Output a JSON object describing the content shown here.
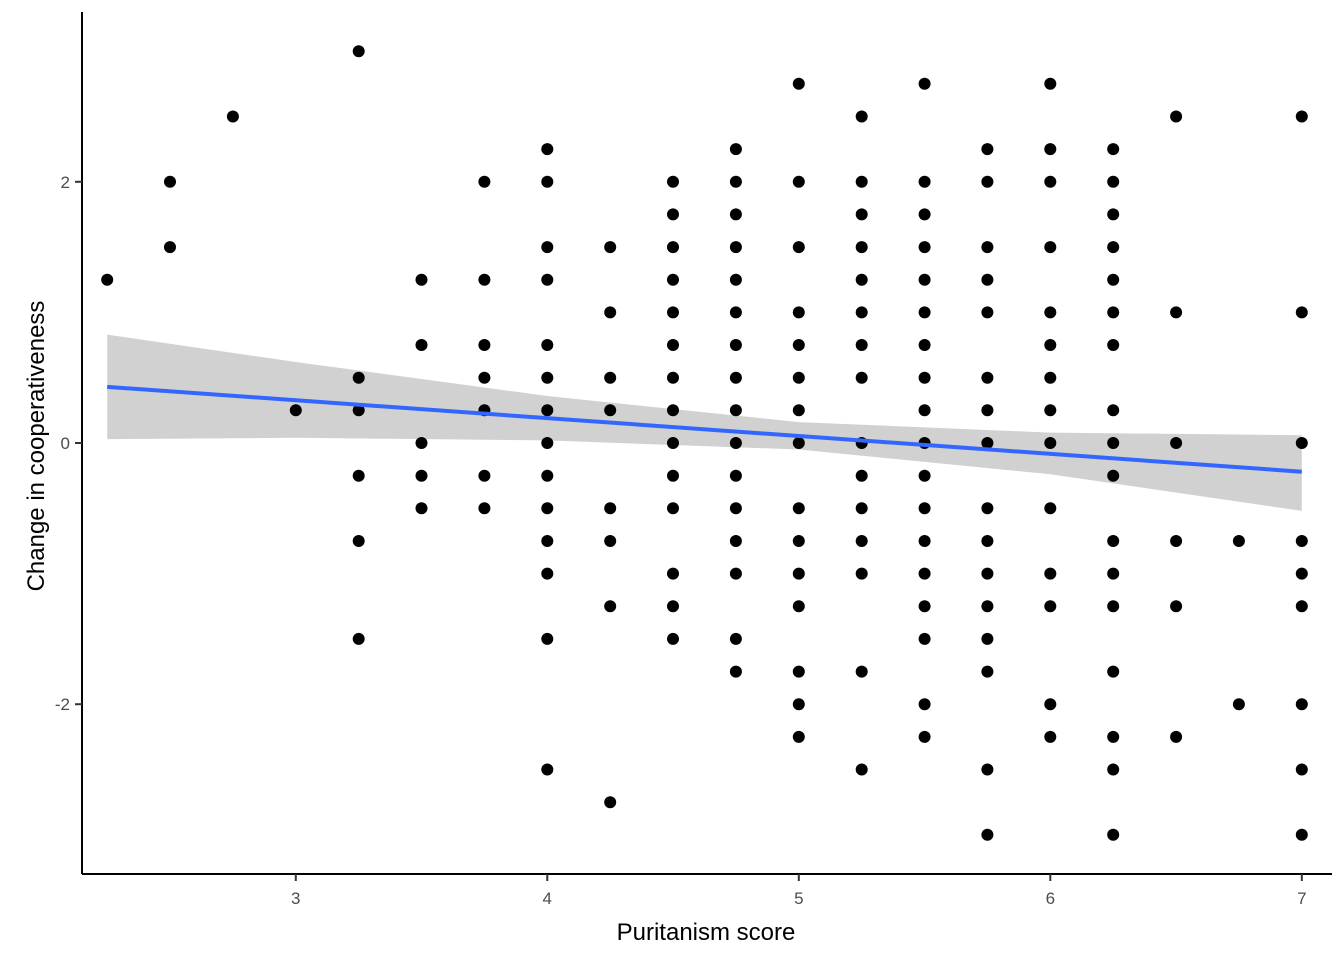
{
  "chart_data": {
    "type": "scatter",
    "title": "",
    "xlabel": "Puritanism score",
    "ylabel": "Change in cooperativeness",
    "xlim": [
      2.15,
      7.12
    ],
    "ylim": [
      -3.3,
      3.3
    ],
    "x_ticks": [
      3,
      4,
      5,
      6,
      7
    ],
    "y_ticks": [
      -2,
      0,
      2
    ],
    "x_tick_labels": [
      "3",
      "4",
      "5",
      "6",
      "7"
    ],
    "y_tick_labels": [
      "-2",
      "0",
      "2"
    ],
    "grid": false,
    "legend": "none",
    "colors": {
      "points": "#000000",
      "fit_line": "#3366FF",
      "ribbon": "#999999",
      "axis": "#000000"
    },
    "points": [
      [
        2.25,
        1.25
      ],
      [
        2.5,
        2
      ],
      [
        2.5,
        1.5
      ],
      [
        2.75,
        2.5
      ],
      [
        3,
        0.25
      ],
      [
        3.25,
        3
      ],
      [
        3.25,
        0.5
      ],
      [
        3.25,
        0.25
      ],
      [
        3.25,
        -0.25
      ],
      [
        3.25,
        -0.75
      ],
      [
        3.25,
        -1.5
      ],
      [
        3.5,
        1.25
      ],
      [
        3.5,
        0.75
      ],
      [
        3.5,
        0
      ],
      [
        3.5,
        -0.25
      ],
      [
        3.5,
        -0.5
      ],
      [
        3.75,
        2
      ],
      [
        3.75,
        1.25
      ],
      [
        3.75,
        0.75
      ],
      [
        3.75,
        0.5
      ],
      [
        3.75,
        0.25
      ],
      [
        3.75,
        -0.25
      ],
      [
        3.75,
        -0.5
      ],
      [
        4,
        2.25
      ],
      [
        4,
        2
      ],
      [
        4,
        1.5
      ],
      [
        4,
        1.25
      ],
      [
        4,
        0.75
      ],
      [
        4,
        0.5
      ],
      [
        4,
        0.25
      ],
      [
        4,
        0
      ],
      [
        4,
        -0.25
      ],
      [
        4,
        -0.5
      ],
      [
        4,
        -0.75
      ],
      [
        4,
        -1
      ],
      [
        4,
        -1.5
      ],
      [
        4,
        -2.5
      ],
      [
        4.25,
        1.5
      ],
      [
        4.25,
        1
      ],
      [
        4.25,
        0.5
      ],
      [
        4.25,
        0.25
      ],
      [
        4.25,
        -0.5
      ],
      [
        4.25,
        -0.75
      ],
      [
        4.25,
        -1.25
      ],
      [
        4.25,
        -2.75
      ],
      [
        4.5,
        2
      ],
      [
        4.5,
        1.75
      ],
      [
        4.5,
        1.5
      ],
      [
        4.5,
        1.25
      ],
      [
        4.5,
        1
      ],
      [
        4.5,
        0.75
      ],
      [
        4.5,
        0.5
      ],
      [
        4.5,
        0.25
      ],
      [
        4.5,
        0
      ],
      [
        4.5,
        -0.25
      ],
      [
        4.5,
        -0.5
      ],
      [
        4.5,
        -1
      ],
      [
        4.5,
        -1.25
      ],
      [
        4.5,
        -1.5
      ],
      [
        4.75,
        2.25
      ],
      [
        4.75,
        2
      ],
      [
        4.75,
        1.75
      ],
      [
        4.75,
        1.5
      ],
      [
        4.75,
        1.25
      ],
      [
        4.75,
        1
      ],
      [
        4.75,
        0.75
      ],
      [
        4.75,
        0.5
      ],
      [
        4.75,
        0.25
      ],
      [
        4.75,
        0
      ],
      [
        4.75,
        -0.25
      ],
      [
        4.75,
        -0.5
      ],
      [
        4.75,
        -0.75
      ],
      [
        4.75,
        -1
      ],
      [
        4.75,
        -1.5
      ],
      [
        4.75,
        -1.75
      ],
      [
        5,
        2.75
      ],
      [
        5,
        2
      ],
      [
        5,
        1.5
      ],
      [
        5,
        1
      ],
      [
        5,
        0.75
      ],
      [
        5,
        0.5
      ],
      [
        5,
        0.25
      ],
      [
        5,
        0
      ],
      [
        5,
        -0.5
      ],
      [
        5,
        -0.75
      ],
      [
        5,
        -1
      ],
      [
        5,
        -1.25
      ],
      [
        5,
        -1.75
      ],
      [
        5,
        -2
      ],
      [
        5,
        -2.25
      ],
      [
        5.25,
        2.5
      ],
      [
        5.25,
        2
      ],
      [
        5.25,
        1.75
      ],
      [
        5.25,
        1.5
      ],
      [
        5.25,
        1.25
      ],
      [
        5.25,
        1
      ],
      [
        5.25,
        0.75
      ],
      [
        5.25,
        0.5
      ],
      [
        5.25,
        0
      ],
      [
        5.25,
        -0.25
      ],
      [
        5.25,
        -0.5
      ],
      [
        5.25,
        -0.75
      ],
      [
        5.25,
        -1
      ],
      [
        5.25,
        -1.75
      ],
      [
        5.25,
        -2.5
      ],
      [
        5.5,
        2.75
      ],
      [
        5.5,
        2
      ],
      [
        5.5,
        1.75
      ],
      [
        5.5,
        1.5
      ],
      [
        5.5,
        1.25
      ],
      [
        5.5,
        1
      ],
      [
        5.5,
        0.75
      ],
      [
        5.5,
        0.5
      ],
      [
        5.5,
        0.25
      ],
      [
        5.5,
        0
      ],
      [
        5.5,
        -0.25
      ],
      [
        5.5,
        -0.5
      ],
      [
        5.5,
        -0.75
      ],
      [
        5.5,
        -1
      ],
      [
        5.5,
        -1.25
      ],
      [
        5.5,
        -1.5
      ],
      [
        5.5,
        -2
      ],
      [
        5.5,
        -2.25
      ],
      [
        5.75,
        2.25
      ],
      [
        5.75,
        2
      ],
      [
        5.75,
        1.5
      ],
      [
        5.75,
        1.25
      ],
      [
        5.75,
        1
      ],
      [
        5.75,
        0.5
      ],
      [
        5.75,
        0.25
      ],
      [
        5.75,
        0
      ],
      [
        5.75,
        -0.5
      ],
      [
        5.75,
        -0.75
      ],
      [
        5.75,
        -1
      ],
      [
        5.75,
        -1.25
      ],
      [
        5.75,
        -1.5
      ],
      [
        5.75,
        -1.75
      ],
      [
        5.75,
        -2.5
      ],
      [
        5.75,
        -3
      ],
      [
        6,
        2.75
      ],
      [
        6,
        2.25
      ],
      [
        6,
        2
      ],
      [
        6,
        1.5
      ],
      [
        6,
        1
      ],
      [
        6,
        0.75
      ],
      [
        6,
        0.5
      ],
      [
        6,
        0.25
      ],
      [
        6,
        0
      ],
      [
        6,
        -0.5
      ],
      [
        6,
        -1
      ],
      [
        6,
        -1.25
      ],
      [
        6,
        -2
      ],
      [
        6,
        -2.25
      ],
      [
        6.25,
        2.25
      ],
      [
        6.25,
        2
      ],
      [
        6.25,
        1.75
      ],
      [
        6.25,
        1.5
      ],
      [
        6.25,
        1.25
      ],
      [
        6.25,
        1
      ],
      [
        6.25,
        0.75
      ],
      [
        6.25,
        0.25
      ],
      [
        6.25,
        0
      ],
      [
        6.25,
        -0.25
      ],
      [
        6.25,
        -0.75
      ],
      [
        6.25,
        -1
      ],
      [
        6.25,
        -1.25
      ],
      [
        6.25,
        -1.75
      ],
      [
        6.25,
        -2.25
      ],
      [
        6.25,
        -2.5
      ],
      [
        6.25,
        -3
      ],
      [
        6.5,
        2.5
      ],
      [
        6.5,
        1
      ],
      [
        6.5,
        0
      ],
      [
        6.5,
        -0.75
      ],
      [
        6.5,
        -1.25
      ],
      [
        6.5,
        -2.25
      ],
      [
        6.75,
        -0.75
      ],
      [
        6.75,
        -2
      ],
      [
        7,
        2.5
      ],
      [
        7,
        1
      ],
      [
        7,
        0
      ],
      [
        7,
        -0.75
      ],
      [
        7,
        -1
      ],
      [
        7,
        -1.25
      ],
      [
        7,
        -2
      ],
      [
        7,
        -2.5
      ],
      [
        7,
        -3
      ]
    ],
    "fit": {
      "method": "linear",
      "x_range": [
        2.25,
        7
      ],
      "y_range": [
        0.43,
        -0.22
      ],
      "ribbon": [
        {
          "x": 2.25,
          "lower": 0.03,
          "upper": 0.83
        },
        {
          "x": 3,
          "lower": 0.04,
          "upper": 0.62
        },
        {
          "x": 4,
          "lower": 0.02,
          "upper": 0.36
        },
        {
          "x": 5,
          "lower": -0.05,
          "upper": 0.16
        },
        {
          "x": 6,
          "lower": -0.24,
          "upper": 0.08
        },
        {
          "x": 7,
          "lower": -0.52,
          "upper": 0.06
        }
      ]
    }
  }
}
